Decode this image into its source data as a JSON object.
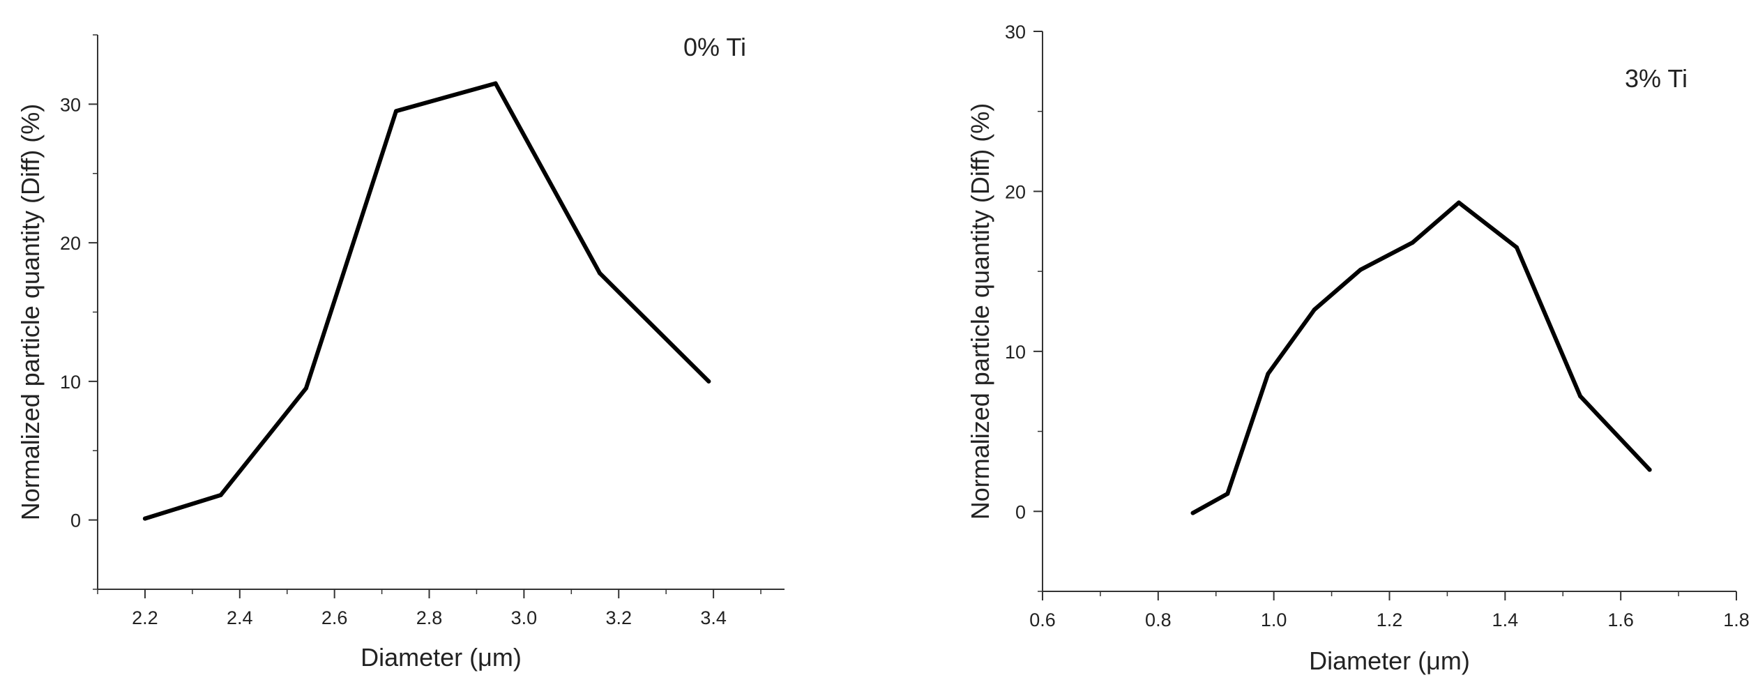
{
  "chart_data": [
    {
      "type": "line",
      "annotation": "0% Ti",
      "xlabel": "Diameter (μm)",
      "ylabel": "Normalized particle quantity (Diff) (%)",
      "xlim": [
        2.1,
        3.55
      ],
      "ylim": [
        -5,
        35
      ],
      "x_ticks": [
        2.2,
        2.4,
        2.6,
        2.8,
        3.0,
        3.2,
        3.4
      ],
      "x_tick_labels": [
        "2.2",
        "2.4",
        "2.6",
        "2.8",
        "3.0",
        "3.2",
        "3.4"
      ],
      "y_ticks": [
        0,
        10,
        20,
        30
      ],
      "y_tick_labels": [
        "0",
        "10",
        "20",
        "30"
      ],
      "series": [
        {
          "name": "0% Ti",
          "x": [
            2.2,
            2.36,
            2.54,
            2.73,
            2.94,
            3.16,
            3.39
          ],
          "y": [
            0.1,
            1.8,
            9.5,
            29.5,
            31.5,
            17.8,
            10.0
          ]
        }
      ]
    },
    {
      "type": "line",
      "annotation": "3% Ti",
      "xlabel": "Diameter (μm)",
      "ylabel": "Normalized particle quantity (Diff) (%)",
      "xlim": [
        0.6,
        1.8
      ],
      "ylim": [
        -5,
        30
      ],
      "x_ticks": [
        0.6,
        0.8,
        1.0,
        1.2,
        1.4,
        1.6,
        1.8
      ],
      "x_tick_labels": [
        "0.6",
        "0.8",
        "1.0",
        "1.2",
        "1.4",
        "1.6",
        "1.8"
      ],
      "y_ticks": [
        0,
        10,
        20,
        30
      ],
      "y_tick_labels": [
        "0",
        "10",
        "20",
        "30"
      ],
      "series": [
        {
          "name": "3% Ti",
          "x": [
            0.86,
            0.92,
            0.99,
            1.07,
            1.15,
            1.24,
            1.32,
            1.42,
            1.53,
            1.65
          ],
          "y": [
            -0.1,
            1.1,
            8.6,
            12.6,
            15.1,
            16.8,
            19.3,
            16.5,
            7.2,
            2.6
          ]
        }
      ]
    }
  ]
}
